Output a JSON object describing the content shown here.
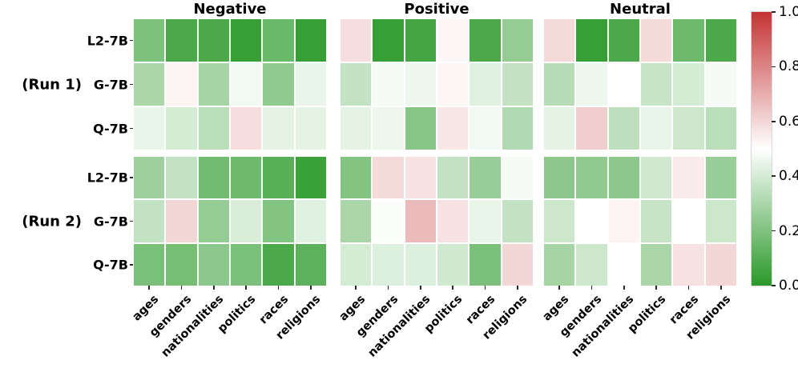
{
  "chart_data": {
    "type": "heatmap",
    "colormap": {
      "low_color": "#2a9928",
      "mid_color": "#ffffff",
      "high_color": "#c53334",
      "vmin": 0.0,
      "midpoint": 0.5,
      "vmax": 1.0
    },
    "colorbar_tick_labels": [
      "1.0",
      "0.8",
      "0.6",
      "0.4",
      "0.2",
      "0.0"
    ],
    "columns": [
      "ages",
      "genders",
      "nationalities",
      "politics",
      "races",
      "religions"
    ],
    "models": [
      "L2-7B",
      "G-7B",
      "Q-7B"
    ],
    "run_labels": [
      "(Run 1)",
      "(Run 2)"
    ],
    "panels": [
      {
        "title": "Negative",
        "runs": [
          {
            "label": "(Run 1)",
            "rows": [
              {
                "model": "L2-7B",
                "values": [
                  0.2,
                  0.08,
                  0.08,
                  0.03,
                  0.15,
                  0.03
                ]
              },
              {
                "model": "G-7B",
                "values": [
                  0.3,
                  0.53,
                  0.29,
                  0.47,
                  0.24,
                  0.45
                ]
              },
              {
                "model": "Q-7B",
                "values": [
                  0.45,
                  0.4,
                  0.34,
                  0.58,
                  0.44,
                  0.44
                ]
              }
            ]
          },
          {
            "label": "(Run 2)",
            "rows": [
              {
                "model": "L2-7B",
                "values": [
                  0.27,
                  0.36,
                  0.17,
                  0.16,
                  0.11,
                  0.04
                ]
              },
              {
                "model": "G-7B",
                "values": [
                  0.36,
                  0.6,
                  0.25,
                  0.41,
                  0.21,
                  0.43
                ]
              },
              {
                "model": "Q-7B",
                "values": [
                  0.19,
                  0.18,
                  0.23,
                  0.19,
                  0.08,
                  0.12
                ]
              }
            ]
          }
        ]
      },
      {
        "title": "Positive",
        "runs": [
          {
            "label": "(Run 1)",
            "rows": [
              {
                "model": "L2-7B",
                "values": [
                  0.58,
                  0.03,
                  0.06,
                  0.52,
                  0.08,
                  0.25
                ]
              },
              {
                "model": "G-7B",
                "values": [
                  0.36,
                  0.48,
                  0.46,
                  0.52,
                  0.43,
                  0.36
                ]
              },
              {
                "model": "Q-7B",
                "values": [
                  0.44,
                  0.46,
                  0.22,
                  0.56,
                  0.47,
                  0.32
                ]
              }
            ]
          },
          {
            "label": "(Run 2)",
            "rows": [
              {
                "model": "L2-7B",
                "values": [
                  0.21,
                  0.59,
                  0.57,
                  0.36,
                  0.26,
                  0.48
                ]
              },
              {
                "model": "G-7B",
                "values": [
                  0.3,
                  0.49,
                  0.67,
                  0.57,
                  0.45,
                  0.36
                ]
              },
              {
                "model": "Q-7B",
                "values": [
                  0.4,
                  0.42,
                  0.42,
                  0.39,
                  0.19,
                  0.6
                ]
              }
            ]
          }
        ]
      },
      {
        "title": "Neutral",
        "runs": [
          {
            "label": "(Run 1)",
            "rows": [
              {
                "model": "L2-7B",
                "values": [
                  0.59,
                  0.03,
                  0.08,
                  0.59,
                  0.16,
                  0.08
                ]
              },
              {
                "model": "G-7B",
                "values": [
                  0.33,
                  0.46,
                  0.5,
                  0.37,
                  0.4,
                  0.48
                ]
              },
              {
                "model": "Q-7B",
                "values": [
                  0.44,
                  0.62,
                  0.35,
                  0.45,
                  0.38,
                  0.34
                ]
              }
            ]
          },
          {
            "label": "(Run 2)",
            "rows": [
              {
                "model": "L2-7B",
                "values": [
                  0.23,
                  0.24,
                  0.23,
                  0.39,
                  0.55,
                  0.26
                ]
              },
              {
                "model": "G-7B",
                "values": [
                  0.38,
                  0.5,
                  0.53,
                  0.37,
                  0.5,
                  0.38
                ]
              },
              {
                "model": "Q-7B",
                "values": [
                  0.29,
                  0.38,
                  0.5,
                  0.3,
                  0.57,
                  0.6
                ]
              }
            ]
          }
        ]
      }
    ]
  }
}
